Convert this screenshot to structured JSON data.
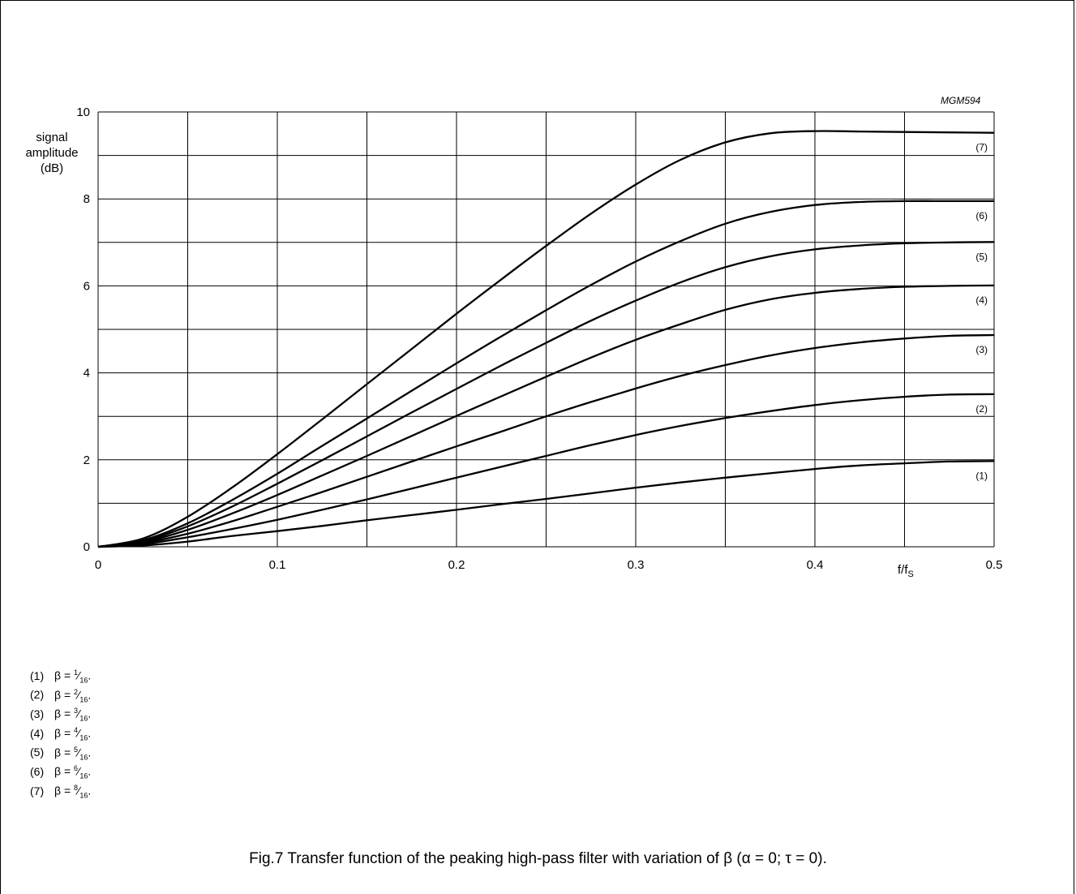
{
  "figure_code": "MGM594",
  "caption": "Fig.7  Transfer function of the peaking high-pass filter with variation of β (α = 0; τ = 0).",
  "legend": [
    {
      "id": "(1)",
      "text": "β = ",
      "num": "1",
      "den": "16",
      "end": "."
    },
    {
      "id": "(2)",
      "text": "β = ",
      "num": "2",
      "den": "16",
      "end": "."
    },
    {
      "id": "(3)",
      "text": "β = ",
      "num": "3",
      "den": "16",
      "end": "."
    },
    {
      "id": "(4)",
      "text": "β = ",
      "num": "4",
      "den": "16",
      "end": "."
    },
    {
      "id": "(5)",
      "text": "β = ",
      "num": "5",
      "den": "16",
      "end": "."
    },
    {
      "id": "(6)",
      "text": "β = ",
      "num": "6",
      "den": "16",
      "end": "."
    },
    {
      "id": "(7)",
      "text": "β = ",
      "num": "8",
      "den": "16",
      "end": "."
    }
  ],
  "chart_data": {
    "type": "line",
    "title": "",
    "ylabel_lines": [
      "signal",
      "amplitude",
      "(dB)"
    ],
    "xlabel_main": "f/f",
    "xlabel_sub": "S",
    "xlim": [
      0,
      0.5
    ],
    "ylim": [
      0,
      10
    ],
    "xticks": [
      0,
      0.1,
      0.2,
      0.3,
      0.4,
      0.5
    ],
    "xtick_labels": [
      "0",
      "0.1",
      "0.2",
      "0.3",
      "0.4",
      "0.5"
    ],
    "yticks": [
      0,
      2,
      4,
      6,
      8,
      10
    ],
    "ytick_labels": [
      "0",
      "2",
      "4",
      "6",
      "8",
      "10"
    ],
    "x_gridlines": [
      0,
      0.05,
      0.1,
      0.15,
      0.2,
      0.25,
      0.3,
      0.35,
      0.4,
      0.45,
      0.5
    ],
    "y_gridlines": [
      0,
      1,
      2,
      3,
      4,
      5,
      6,
      7,
      8,
      9,
      10
    ],
    "grid": true,
    "x": [
      0,
      0.025,
      0.05,
      0.075,
      0.1,
      0.125,
      0.15,
      0.175,
      0.2,
      0.225,
      0.25,
      0.275,
      0.3,
      0.325,
      0.35,
      0.375,
      0.4,
      0.425,
      0.45,
      0.475,
      0.5
    ],
    "series": [
      {
        "name": "(1)",
        "values": [
          0,
          0.03,
          0.12,
          0.25,
          0.36,
          0.48,
          0.61,
          0.73,
          0.85,
          0.98,
          1.1,
          1.23,
          1.36,
          1.48,
          1.59,
          1.69,
          1.79,
          1.87,
          1.92,
          1.96,
          1.97
        ]
      },
      {
        "name": "(2)",
        "values": [
          0,
          0.06,
          0.22,
          0.41,
          0.62,
          0.85,
          1.09,
          1.34,
          1.59,
          1.84,
          2.09,
          2.34,
          2.57,
          2.78,
          2.96,
          3.12,
          3.26,
          3.37,
          3.45,
          3.5,
          3.51
        ]
      },
      {
        "name": "(3)",
        "values": [
          0,
          0.09,
          0.3,
          0.59,
          0.92,
          1.26,
          1.61,
          1.96,
          2.31,
          2.65,
          3.0,
          3.33,
          3.64,
          3.93,
          4.18,
          4.4,
          4.57,
          4.7,
          4.79,
          4.85,
          4.87
        ]
      },
      {
        "name": "(4)",
        "values": [
          0,
          0.11,
          0.39,
          0.77,
          1.19,
          1.64,
          2.09,
          2.55,
          3.01,
          3.46,
          3.91,
          4.35,
          4.76,
          5.12,
          5.45,
          5.69,
          5.84,
          5.93,
          5.98,
          6.0,
          6.01
        ]
      },
      {
        "name": "(5)",
        "values": [
          0,
          0.13,
          0.47,
          0.93,
          1.45,
          1.99,
          2.54,
          3.09,
          3.63,
          4.17,
          4.69,
          5.2,
          5.66,
          6.08,
          6.43,
          6.68,
          6.84,
          6.93,
          6.98,
          7.0,
          7.01
        ]
      },
      {
        "name": "(6)",
        "values": [
          0,
          0.15,
          0.54,
          1.08,
          1.68,
          2.32,
          2.95,
          3.59,
          4.22,
          4.84,
          5.44,
          6.02,
          6.56,
          7.03,
          7.43,
          7.7,
          7.86,
          7.93,
          7.95,
          7.95,
          7.95
        ]
      },
      {
        "name": "(7)",
        "values": [
          0,
          0.19,
          0.69,
          1.37,
          2.13,
          2.93,
          3.74,
          4.55,
          5.36,
          6.15,
          6.92,
          7.66,
          8.33,
          8.9,
          9.3,
          9.51,
          9.56,
          9.55,
          9.54,
          9.53,
          9.52
        ]
      }
    ]
  }
}
